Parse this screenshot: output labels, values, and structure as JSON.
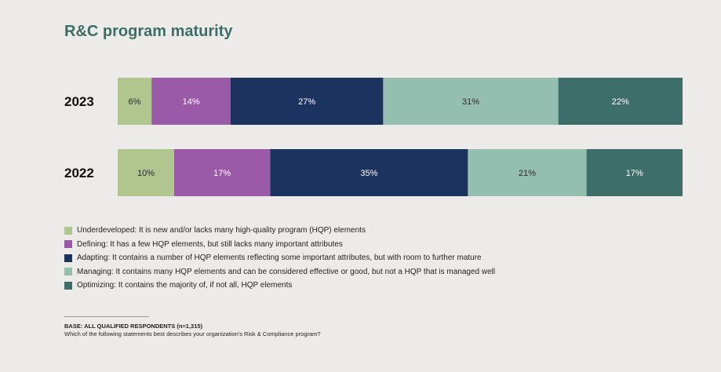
{
  "title": "R&C program maturity",
  "chart_data": {
    "type": "bar",
    "orientation": "horizontal",
    "stacked": true,
    "unit": "%",
    "categories": [
      "2023",
      "2022"
    ],
    "series": [
      {
        "name": "Underdeveloped",
        "color": "#b1c58e",
        "values": [
          6,
          10
        ]
      },
      {
        "name": "Defining",
        "color": "#9a5aa8",
        "values": [
          14,
          17
        ]
      },
      {
        "name": "Adapting",
        "color": "#1c3360",
        "values": [
          27,
          35
        ]
      },
      {
        "name": "Managing",
        "color": "#93beb0",
        "values": [
          31,
          21
        ]
      },
      {
        "name": "Optimizing",
        "color": "#3e6e6a",
        "values": [
          22,
          17
        ]
      }
    ],
    "value_labels": [
      [
        "6%",
        "14%",
        "27%",
        "31%",
        "22%"
      ],
      [
        "10%",
        "17%",
        "35%",
        "21%",
        "17%"
      ]
    ],
    "label_colors": [
      "#2a2a2a",
      "#ffffff",
      "#ffffff",
      "#2a2a2a",
      "#ffffff"
    ],
    "xlim": [
      0,
      100
    ]
  },
  "legend": [
    {
      "text": "Underdeveloped: It is new and/or lacks many high-quality program (HQP) elements",
      "color": "#b1c58e"
    },
    {
      "text": "Defining: It has a few HQP elements, but still lacks many important attributes",
      "color": "#9a5aa8"
    },
    {
      "text": "Adapting: It contains a number of HQP elements reflecting some important attributes, but with room to further mature",
      "color": "#1c3360"
    },
    {
      "text": "Managing: It contains many HQP elements and can be considered effective or good, but not a HQP that is managed well",
      "color": "#93beb0"
    },
    {
      "text": "Optimizing: It contains the majority of, if not all, HQP elements",
      "color": "#3e6e6a"
    }
  ],
  "footnote": {
    "base": "BASE: ALL QUALIFIED RESPONDENTS (n=1,315)",
    "question": "Which of the following statements best describes your organization's Risk & Compliance program?"
  }
}
